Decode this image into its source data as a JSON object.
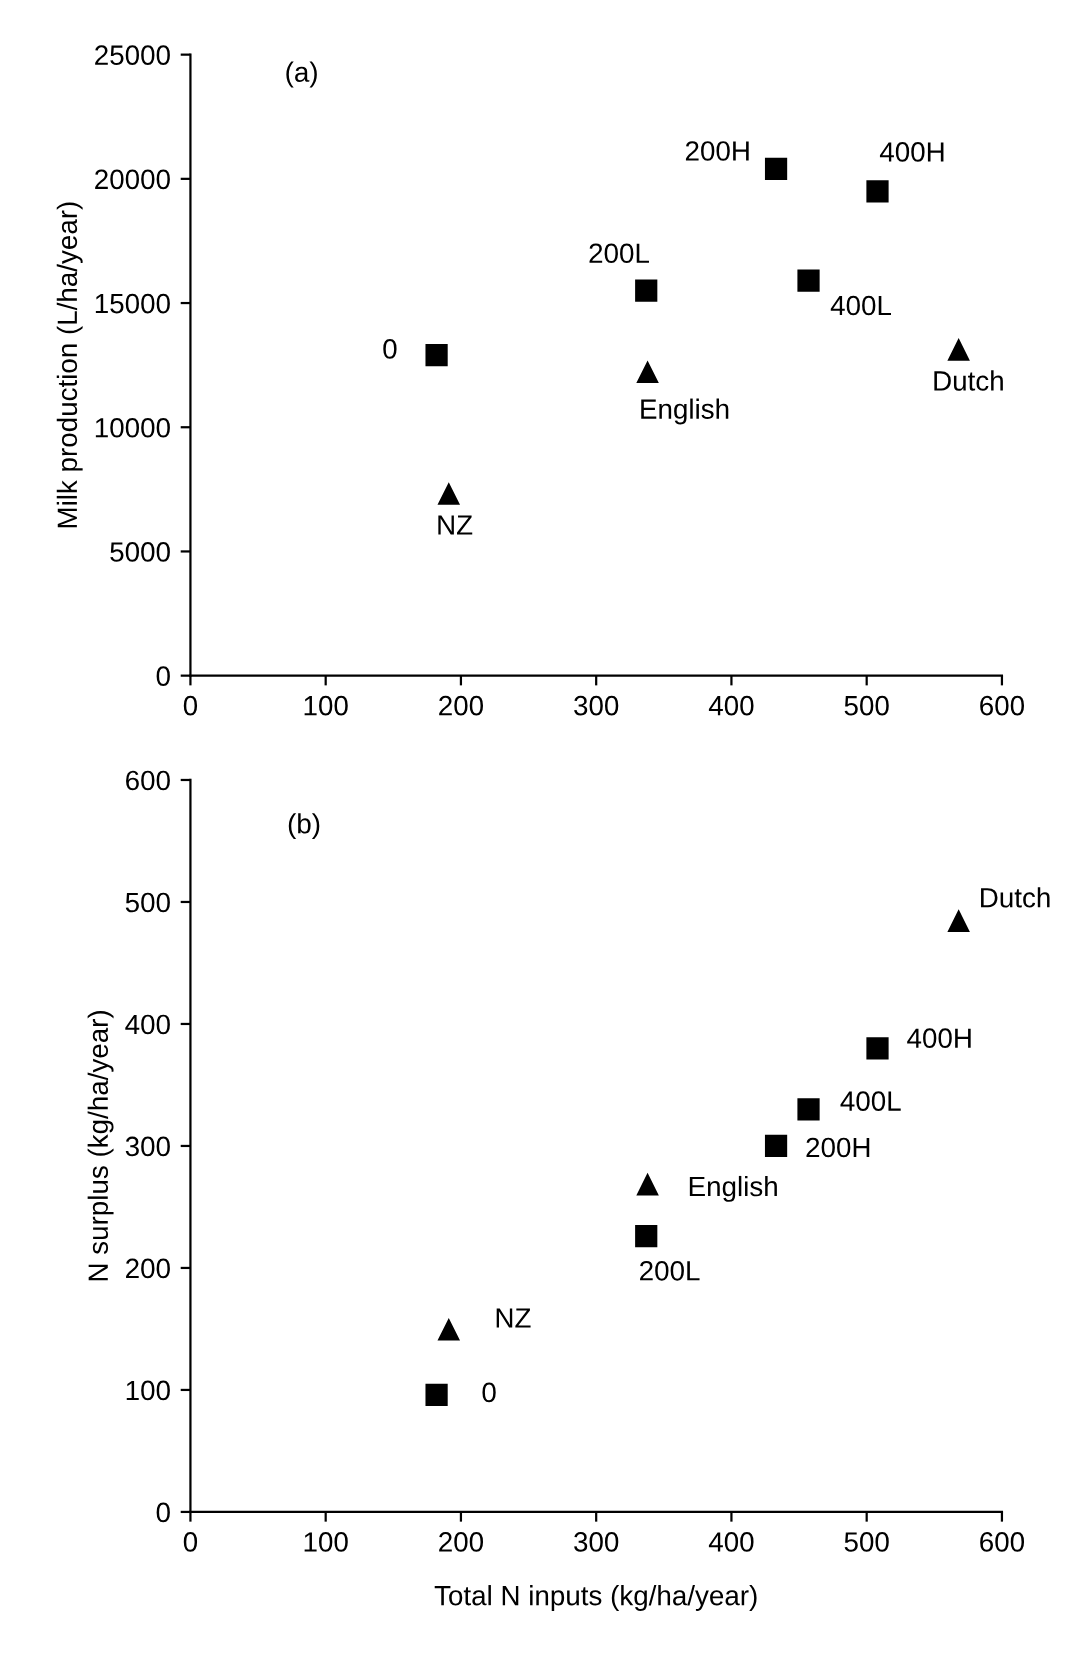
{
  "chart_data": [
    {
      "type": "scatter",
      "ylabel": "Milk production (L/ha/year)",
      "xlim": [
        0,
        600
      ],
      "xticks": [
        0,
        100,
        200,
        300,
        400,
        500,
        600
      ],
      "ylim": [
        0,
        25000
      ],
      "yticks": [
        0,
        5000,
        10000,
        15000,
        20000,
        25000
      ],
      "grid": false,
      "legend": false,
      "series": [
        {
          "color": "#000000",
          "marker": "square",
          "x": [
            182,
            337,
            433,
            457,
            508
          ],
          "values": [
            12900,
            15500,
            20400,
            15900,
            19500
          ]
        },
        {
          "color": "#000000",
          "marker": "triangle",
          "x": [
            191,
            338,
            568
          ],
          "values": [
            7300,
            12200,
            13100
          ]
        }
      ],
      "annotations": [
        "(a)",
        {
          "text": "0",
          "x": 182,
          "y": 12900
        },
        {
          "text": "NZ",
          "x": 191,
          "y": 7300
        },
        {
          "text": "200L",
          "x": 337,
          "y": 15500
        },
        {
          "text": "English",
          "x": 338,
          "y": 12200
        },
        {
          "text": "200H",
          "x": 433,
          "y": 20400
        },
        {
          "text": "400L",
          "x": 457,
          "y": 15900
        },
        {
          "text": "400H",
          "x": 508,
          "y": 19500
        },
        {
          "text": "Dutch",
          "x": 568,
          "y": 13100
        }
      ]
    },
    {
      "type": "scatter",
      "xlabel": "Total N inputs (kg/ha/year)",
      "ylabel": "N surplus (kg/ha/year)",
      "xlim": [
        0,
        600
      ],
      "xticks": [
        0,
        100,
        200,
        300,
        400,
        500,
        600
      ],
      "ylim": [
        0,
        600
      ],
      "yticks": [
        0,
        100,
        200,
        300,
        400,
        500,
        600
      ],
      "grid": false,
      "legend": false,
      "series": [
        {
          "color": "#000000",
          "marker": "square",
          "x": [
            182,
            337,
            433,
            457,
            508
          ],
          "values": [
            96,
            226,
            300,
            330,
            380
          ]
        },
        {
          "color": "#000000",
          "marker": "triangle",
          "x": [
            191,
            338,
            568
          ],
          "values": [
            149,
            268,
            484
          ]
        }
      ],
      "annotations": [
        "(b)",
        {
          "text": "0",
          "x": 182,
          "y": 96
        },
        {
          "text": "NZ",
          "x": 191,
          "y": 149
        },
        {
          "text": "200L",
          "x": 337,
          "y": 226
        },
        {
          "text": "English",
          "x": 338,
          "y": 268
        },
        {
          "text": "200H",
          "x": 433,
          "y": 300
        },
        {
          "text": "400L",
          "x": 457,
          "y": 330
        },
        {
          "text": "400H",
          "x": 508,
          "y": 380
        },
        {
          "text": "Dutch",
          "x": 568,
          "y": 484
        }
      ]
    }
  ]
}
